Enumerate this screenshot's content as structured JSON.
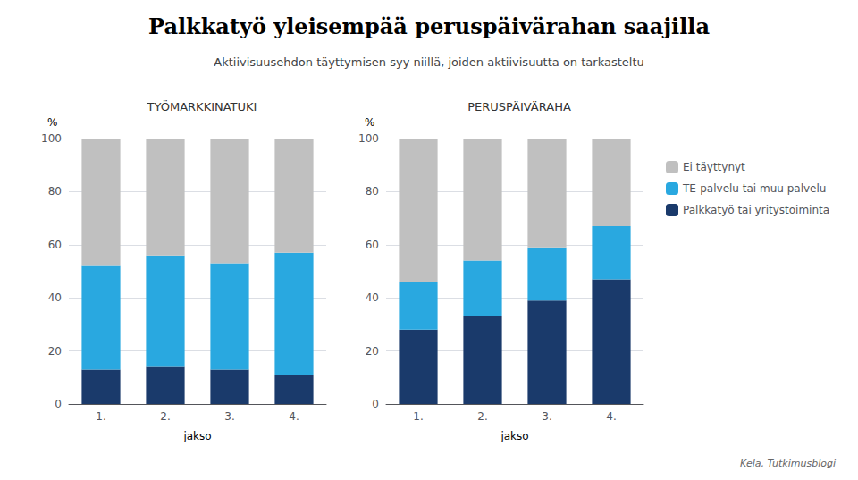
{
  "title": "Palkkatyö yleisempää peruspäivärahan saajilla",
  "subtitle": "Aktiivisuusehdon täyttymisen syy niillä, joiden aktiivisuutta on tarkasteltu",
  "source": "Kela, Tutkimusblogi",
  "chart_data": [
    {
      "type": "bar",
      "stacked": true,
      "title": "TYÖMARKKINATUKI",
      "xlabel": "jakso",
      "ylabel": "%",
      "categories": [
        "1.",
        "2.",
        "3.",
        "4."
      ],
      "series": [
        {
          "name": "Palkkatyö tai yritystoiminta",
          "color": "#1a3a6b",
          "values": [
            13,
            14,
            13,
            11
          ]
        },
        {
          "name": "TE-palvelu tai muu palvelu",
          "color": "#29a8e0",
          "values": [
            39,
            42,
            40,
            46
          ]
        },
        {
          "name": "Ei täyttynyt",
          "color": "#c0c0c0",
          "values": [
            48,
            44,
            47,
            43
          ]
        }
      ],
      "ylim": [
        0,
        100
      ],
      "yticks": [
        0,
        20,
        40,
        60,
        80,
        100
      ],
      "grid": true,
      "legend": "right"
    },
    {
      "type": "bar",
      "stacked": true,
      "title": "PERUSPÄIVÄRAHA",
      "xlabel": "jakso",
      "ylabel": "%",
      "categories": [
        "1.",
        "2.",
        "3.",
        "4."
      ],
      "series": [
        {
          "name": "Palkkatyö tai yritystoiminta",
          "color": "#1a3a6b",
          "values": [
            28,
            33,
            39,
            47
          ]
        },
        {
          "name": "TE-palvelu tai muu palvelu",
          "color": "#29a8e0",
          "values": [
            18,
            21,
            20,
            20
          ]
        },
        {
          "name": "Ei täyttynyt",
          "color": "#c0c0c0",
          "values": [
            54,
            46,
            41,
            33
          ]
        }
      ],
      "ylim": [
        0,
        100
      ],
      "yticks": [
        0,
        20,
        40,
        60,
        80,
        100
      ],
      "grid": true,
      "legend": "right"
    }
  ]
}
